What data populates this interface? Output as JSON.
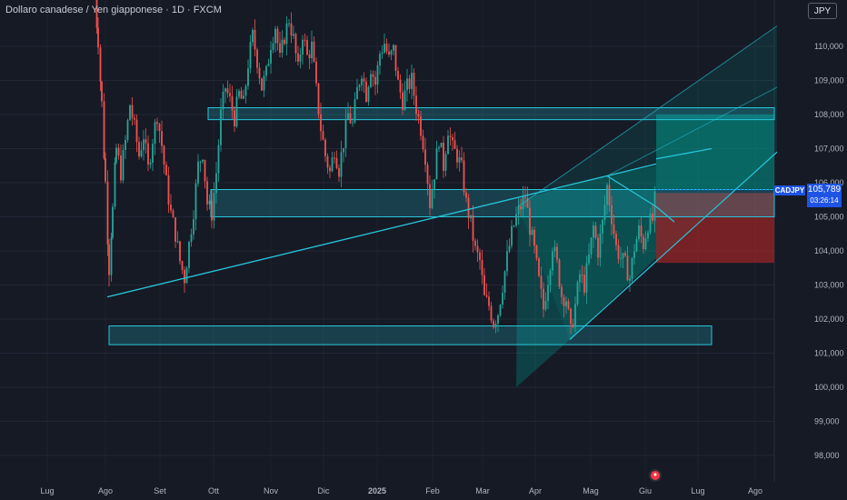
{
  "header": {
    "title": "Dollaro canadese / Yen giapponese · 1D · FXCM",
    "currency_button": "JPY"
  },
  "price_tag": {
    "symbol": "CADJPY",
    "price": "105,789",
    "countdown": "03:26:14"
  },
  "colors": {
    "background": "#161a25",
    "bull_candle": "#26a69a",
    "bear_candle": "#ef5350",
    "zone_fill": "#26c6da",
    "line": "#26c6da",
    "target_fill": "#009688",
    "stop_fill": "#c62828",
    "badge": "#1e53e5"
  },
  "chart_data": {
    "type": "candlestick",
    "title": "Dollaro canadese / Yen giapponese · 1D · FXCM",
    "ylim": [
      97.5,
      110.8
    ],
    "y_ticks": [
      "110,000",
      "109,000",
      "108,000",
      "107,000",
      "106,000",
      "105,000",
      "104,000",
      "103,000",
      "102,000",
      "101,000",
      "100,000",
      "99,000",
      "98,000"
    ],
    "y_tick_values": [
      110,
      109,
      108,
      107,
      106,
      105,
      104,
      103,
      102,
      101,
      100,
      99,
      98
    ],
    "x_ticks": [
      "Lug",
      "Ago",
      "Set",
      "Ott",
      "Nov",
      "Dic",
      "2025",
      "Feb",
      "Mar",
      "Apr",
      "Mag",
      "Giu",
      "Lug",
      "Ago"
    ],
    "x_tick_positions": [
      52,
      116,
      176,
      235,
      298,
      356,
      415,
      476,
      531,
      589,
      650,
      710,
      768,
      831
    ],
    "last_price": 105.789,
    "price_path": [
      [
        104,
        111.5
      ],
      [
        108,
        110.2
      ],
      [
        112,
        108.3
      ],
      [
        116,
        106.0
      ],
      [
        120,
        103.5
      ],
      [
        124,
        105.2
      ],
      [
        128,
        107.0
      ],
      [
        133,
        106.3
      ],
      [
        138,
        107.2
      ],
      [
        143,
        108.3
      ],
      [
        148,
        107.6
      ],
      [
        153,
        106.8
      ],
      [
        158,
        107.4
      ],
      [
        163,
        106.4
      ],
      [
        168,
        107.3
      ],
      [
        173,
        108.0
      ],
      [
        178,
        107.1
      ],
      [
        183,
        106.0
      ],
      [
        188,
        105.1
      ],
      [
        193,
        104.5
      ],
      [
        198,
        103.7
      ],
      [
        203,
        103.2
      ],
      [
        208,
        104.2
      ],
      [
        213,
        105.2
      ],
      [
        218,
        106.5
      ],
      [
        223,
        106.9
      ],
      [
        228,
        105.4
      ],
      [
        233,
        105.1
      ],
      [
        238,
        106.3
      ],
      [
        243,
        108.0
      ],
      [
        248,
        108.8
      ],
      [
        253,
        108.4
      ],
      [
        258,
        107.9
      ],
      [
        263,
        108.6
      ],
      [
        268,
        108.3
      ],
      [
        273,
        109.5
      ],
      [
        278,
        110.3
      ],
      [
        283,
        109.6
      ],
      [
        288,
        108.8
      ],
      [
        293,
        109.2
      ],
      [
        298,
        110.1
      ],
      [
        303,
        110.6
      ],
      [
        308,
        109.6
      ],
      [
        313,
        110.3
      ],
      [
        318,
        110.8
      ],
      [
        323,
        110.2
      ],
      [
        328,
        109.3
      ],
      [
        333,
        110.4
      ],
      [
        338,
        109.7
      ],
      [
        343,
        110.0
      ],
      [
        348,
        108.7
      ],
      [
        353,
        107.6
      ],
      [
        358,
        106.8
      ],
      [
        363,
        106.3
      ],
      [
        368,
        107.0
      ],
      [
        373,
        106.4
      ],
      [
        378,
        107.2
      ],
      [
        383,
        108.0
      ],
      [
        388,
        107.7
      ],
      [
        393,
        108.7
      ],
      [
        398,
        109.3
      ],
      [
        403,
        108.6
      ],
      [
        408,
        109.4
      ],
      [
        413,
        108.9
      ],
      [
        418,
        109.8
      ],
      [
        423,
        110.1
      ],
      [
        428,
        109.6
      ],
      [
        433,
        109.9
      ],
      [
        438,
        108.9
      ],
      [
        443,
        108.4
      ],
      [
        448,
        108.8
      ],
      [
        453,
        109.0
      ],
      [
        458,
        108.2
      ],
      [
        463,
        107.6
      ],
      [
        468,
        106.8
      ],
      [
        473,
        105.4
      ],
      [
        478,
        106.3
      ],
      [
        483,
        107.3
      ],
      [
        488,
        106.5
      ],
      [
        493,
        107.6
      ],
      [
        498,
        107.0
      ],
      [
        503,
        106.8
      ],
      [
        508,
        106.4
      ],
      [
        513,
        105.4
      ],
      [
        518,
        104.8
      ],
      [
        523,
        104.0
      ],
      [
        528,
        103.7
      ],
      [
        533,
        102.6
      ],
      [
        538,
        102.4
      ],
      [
        543,
        101.9
      ],
      [
        548,
        102.2
      ],
      [
        553,
        103.0
      ],
      [
        558,
        103.8
      ],
      [
        563,
        104.5
      ],
      [
        568,
        105.0
      ],
      [
        573,
        105.3
      ],
      [
        578,
        105.6
      ],
      [
        583,
        104.7
      ],
      [
        588,
        104.0
      ],
      [
        593,
        103.1
      ],
      [
        598,
        102.3
      ],
      [
        603,
        103.2
      ],
      [
        608,
        104.2
      ],
      [
        613,
        103.6
      ],
      [
        618,
        102.7
      ],
      [
        623,
        102.6
      ],
      [
        628,
        101.6
      ],
      [
        633,
        102.4
      ],
      [
        638,
        103.3
      ],
      [
        643,
        103.0
      ],
      [
        648,
        103.8
      ],
      [
        653,
        104.7
      ],
      [
        658,
        104.0
      ],
      [
        663,
        104.8
      ],
      [
        668,
        105.9
      ],
      [
        673,
        105.0
      ],
      [
        678,
        104.1
      ],
      [
        683,
        103.8
      ],
      [
        688,
        103.6
      ],
      [
        693,
        103.2
      ],
      [
        698,
        104.1
      ],
      [
        703,
        104.6
      ],
      [
        708,
        104.2
      ],
      [
        713,
        104.8
      ],
      [
        718,
        104.9
      ],
      [
        722,
        105.79
      ]
    ],
    "shapes": {
      "zones": [
        {
          "x1": 229,
          "x2": 852,
          "y1": 108.2,
          "y2": 107.85
        },
        {
          "x1": 232,
          "x2": 852,
          "y1": 105.8,
          "y2": 105.0
        },
        {
          "x1": 120,
          "x2": 783,
          "y1": 101.8,
          "y2": 101.25
        }
      ],
      "trend_lines": [
        {
          "x1": 118,
          "y1": 102.65,
          "x2": 722,
          "y2": 106.55
        },
        {
          "x1": 668,
          "y1": 106.2,
          "x2": 722,
          "y2": 105.3
        },
        {
          "x1": 722,
          "y1": 105.3,
          "x2": 742,
          "y2": 104.85
        }
      ],
      "channel": {
        "lower_start": [
          627,
          101.4
        ],
        "lower_end": [
          855,
          106.9
        ],
        "upper_start": [
          570,
          105.3
        ],
        "upper_end": [
          855,
          110.6
        ],
        "mid_start": [
          668,
          106.2
        ],
        "mid_end": [
          855,
          108.8
        ]
      },
      "ray": {
        "x1": 722,
        "y1": 106.7,
        "x2": 783,
        "y2": 107.0
      },
      "cone": [
        [
          568,
          100.0
        ],
        [
          570,
          105.5
        ],
        [
          668,
          106.2
        ],
        [
          722,
          106.5
        ],
        [
          722,
          103.8
        ],
        [
          627,
          101.4
        ]
      ],
      "target_box": {
        "x1": 722,
        "x2": 852,
        "y1": 108.0,
        "y2": 105.8
      },
      "stop_box": {
        "x1": 722,
        "x2": 852,
        "y1": 105.7,
        "y2": 103.65
      }
    }
  }
}
